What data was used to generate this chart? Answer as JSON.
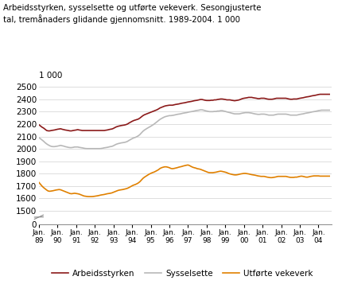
{
  "title_line1": "Arbeidsstyrken, sysselsette og utførte vekeverk. Sesongjusterte",
  "title_line2": "tal, tremånaders glidande gjennomsnitt. 1989-2004. 1 000",
  "unit_label": "1 000",
  "yticks_main": [
    1500,
    1600,
    1700,
    1800,
    1900,
    2000,
    2100,
    2200,
    2300,
    2400,
    2500
  ],
  "ylim_main": [
    1450,
    2550
  ],
  "ylim_break": [
    0,
    30
  ],
  "background_color": "#ffffff",
  "grid_color": "#d0d0d0",
  "legend": [
    {
      "label": "Arbeidsstyrken",
      "color": "#8b1a1a"
    },
    {
      "label": "Sysselsette",
      "color": "#b8b8b8"
    },
    {
      "label": "Utførte vekeverk",
      "color": "#e08000"
    }
  ],
  "series": {
    "arbeidsstyrken": [
      2195,
      2185,
      2175,
      2168,
      2158,
      2148,
      2145,
      2145,
      2148,
      2150,
      2152,
      2155,
      2158,
      2160,
      2162,
      2158,
      2155,
      2152,
      2150,
      2148,
      2145,
      2145,
      2148,
      2150,
      2152,
      2155,
      2152,
      2150,
      2148,
      2148,
      2148,
      2148,
      2148,
      2148,
      2148,
      2148,
      2148,
      2148,
      2148,
      2148,
      2148,
      2148,
      2148,
      2150,
      2152,
      2155,
      2158,
      2160,
      2165,
      2172,
      2178,
      2182,
      2185,
      2188,
      2190,
      2192,
      2195,
      2200,
      2208,
      2215,
      2222,
      2228,
      2232,
      2236,
      2240,
      2248,
      2258,
      2268,
      2275,
      2280,
      2285,
      2290,
      2295,
      2300,
      2305,
      2310,
      2315,
      2322,
      2330,
      2335,
      2340,
      2345,
      2348,
      2350,
      2352,
      2352,
      2352,
      2355,
      2358,
      2360,
      2362,
      2365,
      2368,
      2370,
      2372,
      2375,
      2378,
      2380,
      2382,
      2385,
      2388,
      2390,
      2392,
      2395,
      2398,
      2398,
      2395,
      2392,
      2390,
      2390,
      2390,
      2392,
      2392,
      2395,
      2395,
      2398,
      2400,
      2402,
      2402,
      2400,
      2398,
      2395,
      2395,
      2395,
      2392,
      2390,
      2388,
      2390,
      2392,
      2395,
      2400,
      2405,
      2408,
      2410,
      2412,
      2415,
      2415,
      2415,
      2412,
      2410,
      2408,
      2405,
      2405,
      2408,
      2408,
      2408,
      2405,
      2402,
      2400,
      2400,
      2400,
      2402,
      2405,
      2408,
      2408,
      2408,
      2408,
      2408,
      2408,
      2408,
      2405,
      2402,
      2400,
      2400,
      2402,
      2402,
      2402,
      2405,
      2408,
      2410,
      2412,
      2415,
      2418,
      2420,
      2422,
      2425,
      2428,
      2430,
      2432,
      2435,
      2438,
      2440,
      2440,
      2440,
      2440,
      2440,
      2440,
      2440
    ],
    "sysselsette": [
      2090,
      2082,
      2072,
      2062,
      2050,
      2040,
      2032,
      2025,
      2020,
      2018,
      2018,
      2020,
      2022,
      2025,
      2028,
      2025,
      2022,
      2018,
      2015,
      2012,
      2010,
      2010,
      2012,
      2015,
      2015,
      2015,
      2012,
      2010,
      2008,
      2005,
      2003,
      2002,
      2002,
      2002,
      2002,
      2002,
      2002,
      2002,
      2002,
      2002,
      2003,
      2005,
      2008,
      2010,
      2012,
      2015,
      2018,
      2020,
      2025,
      2032,
      2038,
      2042,
      2045,
      2048,
      2050,
      2052,
      2055,
      2060,
      2068,
      2075,
      2082,
      2088,
      2092,
      2098,
      2105,
      2115,
      2128,
      2142,
      2152,
      2160,
      2168,
      2175,
      2182,
      2190,
      2198,
      2208,
      2218,
      2228,
      2238,
      2245,
      2252,
      2258,
      2262,
      2265,
      2268,
      2268,
      2270,
      2272,
      2275,
      2278,
      2280,
      2282,
      2285,
      2288,
      2290,
      2292,
      2295,
      2298,
      2300,
      2302,
      2305,
      2308,
      2310,
      2312,
      2315,
      2315,
      2312,
      2308,
      2305,
      2302,
      2300,
      2300,
      2300,
      2302,
      2302,
      2305,
      2305,
      2308,
      2308,
      2305,
      2302,
      2298,
      2295,
      2292,
      2288,
      2285,
      2282,
      2282,
      2282,
      2282,
      2285,
      2288,
      2290,
      2292,
      2292,
      2292,
      2290,
      2288,
      2285,
      2282,
      2280,
      2278,
      2278,
      2280,
      2280,
      2280,
      2278,
      2275,
      2272,
      2272,
      2272,
      2272,
      2275,
      2278,
      2280,
      2280,
      2280,
      2280,
      2280,
      2280,
      2278,
      2275,
      2272,
      2272,
      2272,
      2272,
      2272,
      2275,
      2278,
      2280,
      2282,
      2285,
      2288,
      2290,
      2292,
      2295,
      2298,
      2300,
      2302,
      2305,
      2308,
      2310,
      2312,
      2312,
      2312,
      2312,
      2312,
      2312
    ],
    "utforde_vekeverk": [
      1730,
      1715,
      1700,
      1688,
      1678,
      1668,
      1660,
      1658,
      1660,
      1662,
      1665,
      1668,
      1670,
      1672,
      1670,
      1665,
      1660,
      1655,
      1650,
      1645,
      1640,
      1638,
      1640,
      1642,
      1640,
      1638,
      1635,
      1630,
      1625,
      1620,
      1618,
      1616,
      1615,
      1615,
      1615,
      1616,
      1618,
      1620,
      1622,
      1625,
      1628,
      1630,
      1632,
      1635,
      1638,
      1640,
      1642,
      1645,
      1650,
      1655,
      1660,
      1665,
      1668,
      1670,
      1672,
      1675,
      1678,
      1682,
      1688,
      1695,
      1702,
      1708,
      1712,
      1718,
      1725,
      1735,
      1748,
      1762,
      1772,
      1780,
      1788,
      1796,
      1802,
      1808,
      1812,
      1818,
      1825,
      1832,
      1842,
      1848,
      1852,
      1855,
      1855,
      1852,
      1848,
      1842,
      1840,
      1842,
      1845,
      1848,
      1852,
      1855,
      1858,
      1862,
      1865,
      1868,
      1870,
      1865,
      1858,
      1852,
      1848,
      1845,
      1840,
      1838,
      1835,
      1830,
      1825,
      1820,
      1815,
      1810,
      1808,
      1808,
      1808,
      1810,
      1812,
      1815,
      1818,
      1820,
      1818,
      1815,
      1812,
      1808,
      1802,
      1798,
      1795,
      1792,
      1790,
      1790,
      1792,
      1795,
      1798,
      1800,
      1802,
      1802,
      1800,
      1798,
      1795,
      1792,
      1790,
      1788,
      1785,
      1782,
      1780,
      1778,
      1778,
      1778,
      1775,
      1772,
      1770,
      1768,
      1768,
      1770,
      1772,
      1775,
      1778,
      1778,
      1778,
      1778,
      1778,
      1778,
      1775,
      1772,
      1770,
      1770,
      1770,
      1772,
      1772,
      1775,
      1778,
      1780,
      1778,
      1775,
      1772,
      1772,
      1775,
      1778,
      1780,
      1782,
      1782,
      1782,
      1782,
      1780,
      1780,
      1780,
      1780,
      1780,
      1780,
      1780
    ]
  },
  "n_points": 188,
  "x_start_year": 1989,
  "xtick_years": [
    "89",
    "90",
    "91",
    "92",
    "93",
    "94",
    "95",
    "96",
    "97",
    "98",
    "99",
    "00",
    "01",
    "02",
    "03",
    "04"
  ],
  "line_width": 1.2
}
